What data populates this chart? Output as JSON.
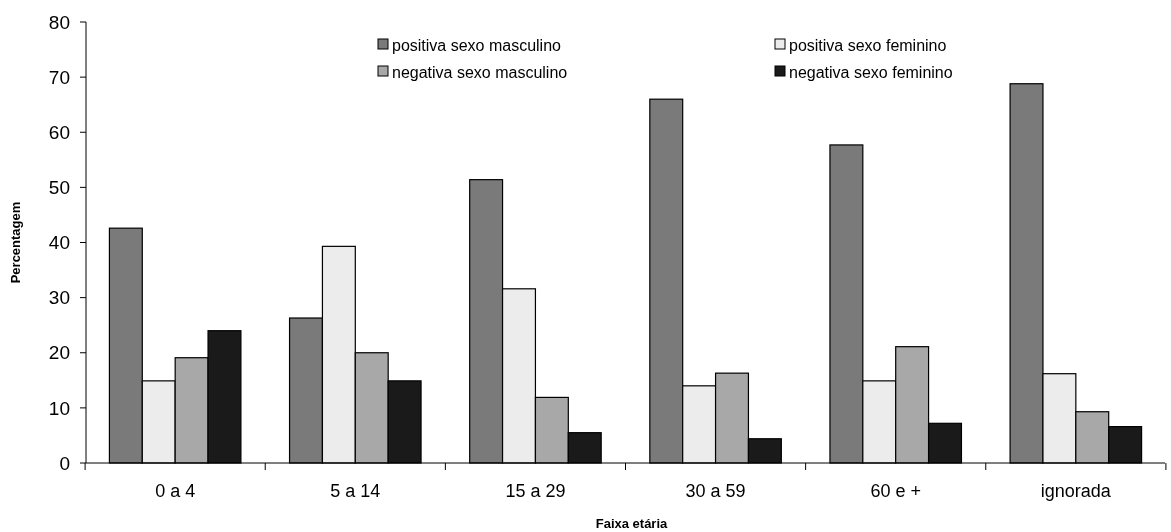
{
  "chart_data": {
    "type": "bar",
    "xlabel": "Faixa etária",
    "ylabel": "Percentagem",
    "categories": [
      "0 a 4",
      "5 a 14",
      "15 a 29",
      "30 a 59",
      "60 e +",
      "ignorada"
    ],
    "series": [
      {
        "name": "positiva sexo masculino",
        "color": "#7a7a7a",
        "values": [
          42.6,
          26.3,
          51.4,
          66,
          57.7,
          68.8
        ]
      },
      {
        "name": "positiva sexo feminino",
        "color": "#ececec",
        "values": [
          14.9,
          39.3,
          31.6,
          14,
          14.9,
          16.2
        ]
      },
      {
        "name": "negativa sexo masculino",
        "color": "#a8a8a8",
        "values": [
          19.1,
          20,
          11.9,
          16.3,
          21.1,
          9.3
        ]
      },
      {
        "name": "negativa sexo feminino",
        "color": "#1a1a1a",
        "values": [
          24,
          14.9,
          5.5,
          4.4,
          7.2,
          6.6
        ]
      }
    ],
    "ylim": [
      0,
      80
    ],
    "yticks": [
      0,
      10,
      20,
      30,
      40,
      50,
      60,
      70,
      80
    ],
    "grid": false,
    "legend": "top right"
  }
}
